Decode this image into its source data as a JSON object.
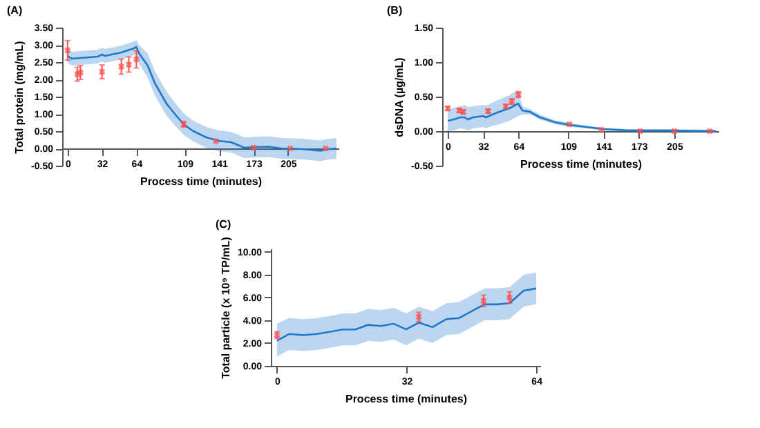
{
  "chart_data": [
    {
      "type": "line",
      "title": "(A)",
      "xlabel": "Process time (minutes)",
      "ylabel": "Total protein (mg/mL)",
      "xlim": [
        -5,
        252
      ],
      "xticks": [
        0,
        32,
        64,
        109,
        141,
        173,
        205
      ],
      "ylim": [
        -0.5,
        3.5
      ],
      "yticks": [
        {
          "value": -0.5,
          "label": "-0.50"
        },
        {
          "value": 0,
          "label": "0.00"
        },
        {
          "value": 0.5,
          "label": "0.50"
        },
        {
          "value": 1,
          "label": "1.00"
        },
        {
          "value": 1.5,
          "label": "1.50"
        },
        {
          "value": 2,
          "label": "2.00"
        },
        {
          "value": 2.5,
          "label": "2.50"
        },
        {
          "value": 3,
          "label": "3.00"
        },
        {
          "value": 3.5,
          "label": "3.50"
        }
      ],
      "series": [
        {
          "type": "line",
          "color": "#1f78c8",
          "marker": "none",
          "x": [
            0,
            3.9,
            16,
            28,
            32,
            34.7,
            50,
            61.7,
            64,
            66.6,
            74.5,
            81,
            92,
            101,
            108.6,
            117,
            129,
            140.6,
            152,
            160,
            164,
            175,
            187,
            199,
            219,
            235,
            242.5,
            250
          ],
          "values": [
            2.68,
            2.6,
            2.63,
            2.66,
            2.72,
            2.68,
            2.78,
            2.9,
            2.94,
            2.75,
            2.4,
            1.9,
            1.3,
            0.95,
            0.68,
            0.5,
            0.32,
            0.22,
            0.18,
            0.08,
            0.02,
            0.04,
            0.05,
            0,
            -0.02,
            -0.07,
            -0.02,
            0
          ],
          "upper": [
            2.88,
            2.8,
            2.83,
            2.86,
            2.92,
            2.88,
            2.98,
            3.1,
            3.14,
            3.0,
            2.75,
            2.25,
            1.65,
            1.28,
            1.0,
            0.8,
            0.62,
            0.52,
            0.48,
            0.38,
            0.32,
            0.34,
            0.35,
            0.3,
            0.28,
            0.23,
            0.28,
            0.3
          ],
          "lower": [
            2.48,
            2.4,
            2.43,
            2.46,
            2.52,
            2.48,
            2.58,
            2.7,
            2.74,
            2.45,
            2.05,
            1.55,
            0.95,
            0.62,
            0.38,
            0.2,
            0.02,
            -0.08,
            -0.12,
            -0.22,
            -0.28,
            -0.26,
            -0.25,
            -0.3,
            -0.32,
            -0.37,
            -0.32,
            -0.3
          ]
        },
        {
          "type": "scatter",
          "color": "#ff4d4d",
          "marker": "cross",
          "x": [
            0,
            9,
            12,
            32,
            50,
            57,
            64,
            108,
            138,
            173,
            207,
            240
          ],
          "values": [
            2.84,
            2.15,
            2.2,
            2.22,
            2.37,
            2.43,
            2.58,
            0.7,
            0.21,
            0.02,
            0,
            0
          ],
          "errors": [
            0.28,
            0.2,
            0.2,
            0.2,
            0.22,
            0.22,
            0.25,
            0.08,
            null,
            null,
            null,
            null
          ]
        }
      ]
    },
    {
      "type": "line",
      "title": "(B)",
      "xlabel": "Process time (minutes)",
      "ylabel": "dsDNA (µg/mL)",
      "xlim": [
        -5,
        245
      ],
      "xticks": [
        0,
        32,
        64,
        109,
        141,
        173,
        205
      ],
      "ylim": [
        -0.5,
        1.5
      ],
      "yticks": [
        {
          "value": -0.5,
          "label": "-0.50"
        },
        {
          "value": 0,
          "label": "0.00"
        },
        {
          "value": 0.5,
          "label": "0.50"
        },
        {
          "value": 1,
          "label": "1.00"
        },
        {
          "value": 1.5,
          "label": "1.50"
        }
      ],
      "series": [
        {
          "type": "line",
          "color": "#1f78c8",
          "marker": "none",
          "x": [
            0,
            5.5,
            11.3,
            15.2,
            18.3,
            23,
            32,
            34.8,
            38.8,
            46.5,
            55.7,
            63.7,
            67.6,
            74.4,
            83.4,
            96.9,
            110.2,
            125.6,
            141,
            163.6,
            201,
            242.6
          ],
          "values": [
            0.15,
            0.17,
            0.2,
            0.2,
            0.17,
            0.2,
            0.22,
            0.2,
            0.23,
            0.28,
            0.33,
            0.4,
            0.3,
            0.28,
            0.2,
            0.13,
            0.09,
            0.06,
            0.03,
            0.01,
            0.01,
            0
          ],
          "upper": [
            0.32,
            0.34,
            0.36,
            0.38,
            0.35,
            0.36,
            0.38,
            0.37,
            0.4,
            0.46,
            0.52,
            0.6,
            0.36,
            0.32,
            0.24,
            0.16,
            0.12,
            0.08,
            0.05,
            0.03,
            0.03,
            0.02
          ],
          "lower": [
            0,
            0.01,
            0.04,
            0.03,
            0.01,
            0.04,
            0.06,
            0.04,
            0.07,
            0.1,
            0.15,
            0.22,
            0.24,
            0.24,
            0.17,
            0.1,
            0.06,
            0.04,
            0.01,
            -0.01,
            -0.01,
            -0.02
          ]
        },
        {
          "type": "scatter",
          "color": "#ff4d4d",
          "marker": "cross",
          "x": [
            0,
            10.5,
            14,
            36.6,
            52.6,
            58,
            64,
            110,
            139,
            174,
            205,
            237
          ],
          "values": [
            0.33,
            0.3,
            0.28,
            0.29,
            0.36,
            0.43,
            0.53,
            0.1,
            0.02,
            0,
            0,
            0
          ],
          "errors": [
            0.03,
            0.03,
            0.03,
            0.03,
            0.03,
            0.04,
            0.04,
            null,
            null,
            null,
            null,
            null
          ]
        }
      ]
    },
    {
      "type": "line",
      "title": "(C)",
      "xlabel": "Process time (minutes)",
      "ylabel": "Total particle (x 10⁹ TP/mL)",
      "xlim": [
        -1.5,
        65
      ],
      "xticks": [
        0,
        32,
        64
      ],
      "ylim": [
        0,
        10.3
      ],
      "yticks": [
        {
          "value": 0,
          "label": "0.00"
        },
        {
          "value": 2,
          "label": "2.00"
        },
        {
          "value": 4,
          "label": "4.00"
        },
        {
          "value": 6,
          "label": "6.00"
        },
        {
          "value": 8,
          "label": "8.00"
        },
        {
          "value": 10,
          "label": "10.00"
        }
      ],
      "series": [
        {
          "type": "line",
          "color": "#1f78c8",
          "marker": "none",
          "x": [
            0,
            3,
            6.5,
            9.9,
            13.3,
            16.2,
            19.4,
            22.5,
            25.6,
            28.8,
            31.9,
            35,
            38.4,
            41.8,
            45,
            51.2,
            54.3,
            57.4,
            60.9,
            64
          ],
          "values": [
            2.2,
            2.8,
            2.7,
            2.8,
            3.0,
            3.2,
            3.2,
            3.6,
            3.5,
            3.7,
            3.2,
            3.8,
            3.4,
            4.1,
            4.2,
            5.4,
            5.4,
            5.5,
            6.6,
            6.8
          ],
          "upper": [
            3.7,
            4.2,
            4.1,
            4.2,
            4.4,
            4.6,
            4.6,
            5.0,
            4.9,
            5.1,
            4.6,
            5.2,
            4.8,
            5.5,
            5.6,
            6.8,
            6.8,
            6.9,
            8.0,
            8.2
          ],
          "lower": [
            0.8,
            1.4,
            1.3,
            1.4,
            1.6,
            1.8,
            1.8,
            2.2,
            2.1,
            2.3,
            1.8,
            2.4,
            2.0,
            2.7,
            2.8,
            4.0,
            4.0,
            4.1,
            5.2,
            5.4
          ]
        },
        {
          "type": "scatter",
          "color": "#ff4d4d",
          "marker": "cross",
          "x": [
            0,
            35,
            51,
            57.4
          ],
          "values": [
            2.7,
            4.3,
            5.7,
            6.0
          ],
          "errors": [
            0.3,
            0.4,
            0.5,
            0.5
          ]
        }
      ]
    }
  ]
}
